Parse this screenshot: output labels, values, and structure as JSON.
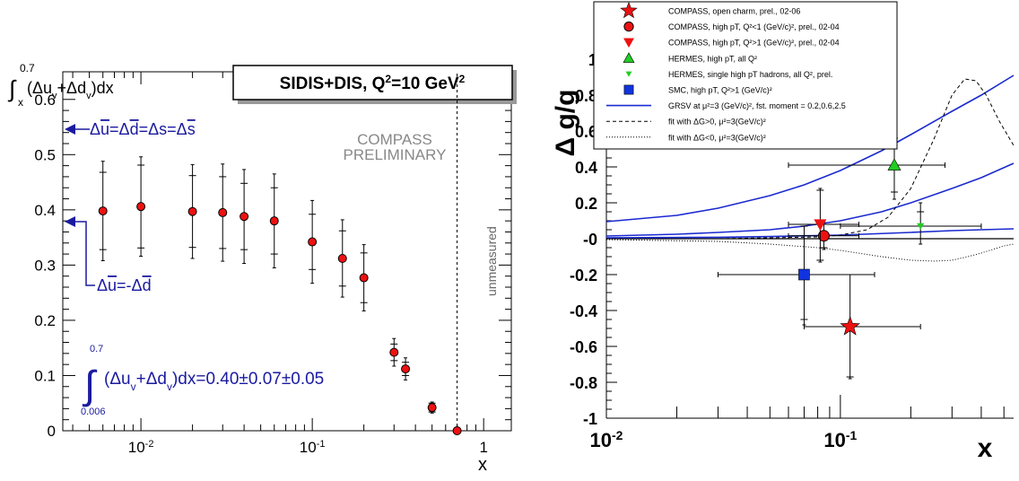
{
  "chart_data": [
    {
      "type": "scatter",
      "title": "SIDIS+DIS, Q²=10 GeV²",
      "ylabel": "∫x^0.7(Δu_v+Δd_v)dx",
      "xlabel": "x",
      "x_scale": "log",
      "xlim": [
        0.0035,
        1.45
      ],
      "ylim": [
        0,
        0.65
      ],
      "x_ticks": [
        {
          "base": "10",
          "exp": "-2"
        },
        {
          "base": "10",
          "exp": "-1"
        },
        {
          "base": "1",
          "exp": ""
        }
      ],
      "y_ticks": [
        "0",
        "0.1",
        "0.2",
        "0.3",
        "0.4",
        "0.5",
        "0.6"
      ],
      "annotations": {
        "compass_line1": "COMPASS",
        "compass_line2": "PRELIMINARY",
        "unmeasured": "unmeasured",
        "arrow_top_label": "Δū=Δd̄=Δs=Δs̄",
        "arrow_bottom_label": "Δū=-Δd̄",
        "integral_text": "(Δu_v+Δd_v)dx=0.40±0.07±0.05",
        "integral_upper": "0.7",
        "integral_lower": "0.006"
      },
      "arrow_values": {
        "top": 0.58,
        "bottom": 0.405
      },
      "unmeasured_x": 0.7,
      "series": [
        {
          "marker": "red-circle",
          "x": [
            0.006,
            0.01,
            0.02,
            0.03,
            0.04,
            0.06,
            0.1,
            0.15,
            0.2,
            0.3,
            0.35,
            0.5,
            0.7
          ],
          "y": [
            0.398,
            0.406,
            0.397,
            0.395,
            0.388,
            0.38,
            0.342,
            0.312,
            0.277,
            0.142,
            0.112,
            0.042,
            0.0
          ],
          "err_stat": [
            0.07,
            0.075,
            0.065,
            0.065,
            0.06,
            0.06,
            0.05,
            0.05,
            0.045,
            0.015,
            0.012,
            0.008,
            0.0
          ],
          "err_tot": [
            0.09,
            0.09,
            0.085,
            0.088,
            0.085,
            0.085,
            0.075,
            0.07,
            0.06,
            0.025,
            0.02,
            0.01,
            0.0
          ]
        }
      ]
    },
    {
      "type": "scatter",
      "ylabel": "Δ g/g",
      "xlabel": "x",
      "x_scale": "log",
      "xlim": [
        0.01,
        0.55
      ],
      "ylim": [
        -1,
        1
      ],
      "x_ticks": [
        {
          "base": "10",
          "exp": "-2"
        },
        {
          "base": "10",
          "exp": "-1"
        }
      ],
      "y_ticks": [
        "-1",
        "-0.8",
        "-0.6",
        "-0.4",
        "-0.2",
        "-0",
        "0.2",
        "0.4",
        "0.6",
        "0.8",
        "1"
      ],
      "legend": [
        {
          "label": "COMPASS, open charm, prel., 02-06",
          "marker": "star",
          "color": "#ee1111"
        },
        {
          "label": "COMPASS, high pT, Q²<1 (GeV/c)², prel., 02-04",
          "marker": "circle",
          "color": "#ee1111"
        },
        {
          "label": "COMPASS, high pT, Q²>1 (GeV/c)², prel., 02-04",
          "marker": "triangle-down",
          "color": "#ee1111"
        },
        {
          "label": "HERMES, high pT, all Q²",
          "marker": "triangle-up",
          "color": "#22cc22"
        },
        {
          "label": "HERMES, single high pT hadrons, all Q², prel.",
          "marker": "triangle-down-small",
          "color": "#22cc22"
        },
        {
          "label": "SMC, high pT, Q²>1 (GeV/c)²",
          "marker": "square",
          "color": "#1133dd"
        },
        {
          "label": "GRSV at μ²=3 (GeV/c)², fst. moment = 0.2,0.6,2.5",
          "marker": "line-solid",
          "color": "#1a2ad0"
        },
        {
          "label": "fit with ΔG>0, μ²=3(GeV/c)²",
          "marker": "line-dashed",
          "color": "#000000"
        },
        {
          "label": "fit with ΔG<0, μ²=3(GeV/c)²",
          "marker": "line-dotted",
          "color": "#000000"
        }
      ],
      "points": [
        {
          "name": "COMPASS open charm",
          "x": 0.11,
          "y": -0.49,
          "x_lo": 0.07,
          "x_hi": 0.22,
          "y_stat": [
            -0.77,
            -0.2
          ],
          "y_tot": [
            -0.78,
            -0.2
          ],
          "marker": "star",
          "color": "#ee1111"
        },
        {
          "name": "COMPASS high pT Q2<1",
          "x": 0.085,
          "y": 0.016,
          "x_lo": 0.06,
          "x_hi": 0.12,
          "y_stat": [
            -0.05,
            0.08
          ],
          "y_tot": [
            -0.06,
            0.09
          ],
          "marker": "circle",
          "color": "#ee1111"
        },
        {
          "name": "COMPASS high pT Q2>1",
          "x": 0.082,
          "y": 0.08,
          "x_lo": 0.06,
          "x_hi": 0.12,
          "y_stat": [
            -0.12,
            0.27
          ],
          "y_tot": [
            -0.13,
            0.28
          ],
          "marker": "triangle-down",
          "color": "#ee1111"
        },
        {
          "name": "HERMES high pT",
          "x": 0.17,
          "y": 0.41,
          "x_lo": 0.06,
          "x_hi": 0.28,
          "y_stat": [
            0.26,
            0.56
          ],
          "y_tot": [
            0.22,
            0.59
          ],
          "marker": "triangle-up",
          "color": "#22cc22"
        },
        {
          "name": "HERMES single high pT",
          "x": 0.22,
          "y": 0.07,
          "x_lo": 0.1,
          "x_hi": 0.4,
          "y_stat": [
            0.0,
            0.15
          ],
          "y_tot": [
            -0.03,
            0.2
          ],
          "marker": "triangle-down-small",
          "color": "#22cc22"
        },
        {
          "name": "SMC high pT",
          "x": 0.07,
          "y": -0.2,
          "x_lo": 0.03,
          "x_hi": 0.14,
          "y_stat": [
            -0.45,
            0.07
          ],
          "y_tot": [
            -0.48,
            0.07
          ],
          "marker": "square",
          "color": "#1133dd"
        }
      ],
      "curves": [
        {
          "name": "GRSV 2.5",
          "style": "solid",
          "color": "#1a2ad0",
          "x": [
            0.01,
            0.02,
            0.03,
            0.05,
            0.07,
            0.1,
            0.15,
            0.2,
            0.3,
            0.4,
            0.55
          ],
          "y": [
            0.095,
            0.13,
            0.17,
            0.24,
            0.3,
            0.38,
            0.49,
            0.58,
            0.71,
            0.8,
            0.91
          ]
        },
        {
          "name": "GRSV 0.6",
          "style": "solid",
          "color": "#1a2ad0",
          "x": [
            0.01,
            0.02,
            0.03,
            0.05,
            0.07,
            0.1,
            0.15,
            0.2,
            0.3,
            0.4,
            0.55
          ],
          "y": [
            0.015,
            0.025,
            0.035,
            0.05,
            0.07,
            0.1,
            0.15,
            0.2,
            0.28,
            0.34,
            0.42
          ]
        },
        {
          "name": "GRSV 0.2",
          "style": "solid",
          "color": "#1a2ad0",
          "x": [
            0.01,
            0.03,
            0.05,
            0.1,
            0.2,
            0.3,
            0.4,
            0.55
          ],
          "y": [
            0.005,
            0.008,
            0.012,
            0.02,
            0.035,
            0.045,
            0.05,
            0.055
          ]
        },
        {
          "name": "fit dG>0",
          "style": "dashed",
          "color": "#000000",
          "x": [
            0.01,
            0.03,
            0.05,
            0.08,
            0.1,
            0.13,
            0.16,
            0.2,
            0.25,
            0.3,
            0.34,
            0.38,
            0.42,
            0.48,
            0.55
          ],
          "y": [
            0.0,
            0.0,
            0.005,
            0.01,
            0.02,
            0.05,
            0.12,
            0.28,
            0.55,
            0.8,
            0.89,
            0.88,
            0.8,
            0.65,
            0.52
          ]
        },
        {
          "name": "fit dG<0",
          "style": "dotted",
          "color": "#000000",
          "x": [
            0.01,
            0.03,
            0.05,
            0.08,
            0.1,
            0.15,
            0.2,
            0.25,
            0.3,
            0.35,
            0.4,
            0.5,
            0.55
          ],
          "y": [
            -0.005,
            -0.015,
            -0.03,
            -0.05,
            -0.065,
            -0.1,
            -0.12,
            -0.125,
            -0.12,
            -0.1,
            -0.08,
            -0.04,
            -0.03
          ]
        }
      ]
    }
  ]
}
